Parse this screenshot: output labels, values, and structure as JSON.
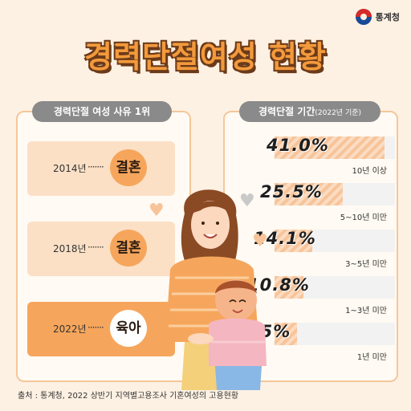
{
  "header": {
    "logo_text": "통계청",
    "title": "경력단절여성 현황"
  },
  "left_panel": {
    "tab_label": "경력단절 여성 사유 1위",
    "entries": [
      {
        "year": "2014년",
        "dots": "·······",
        "reason": "결혼"
      },
      {
        "year": "2018년",
        "dots": "·······",
        "reason": "결혼"
      },
      {
        "year": "2022년",
        "dots": "·······",
        "reason": "육아"
      }
    ]
  },
  "right_panel": {
    "tab_label": "경력단절 기간",
    "tab_note": "(2022년 기준)"
  },
  "chart_data": {
    "type": "bar",
    "categories": [
      "10년 이상",
      "5~10년 미만",
      "3~5년 미만",
      "1~3년 미만",
      "1년 미만"
    ],
    "values": [
      41.0,
      25.5,
      14.1,
      10.8,
      8.5
    ],
    "value_labels": [
      "41.0%",
      "25.5%",
      "14.1%",
      "10.8%",
      "8.5%"
    ],
    "xlim": [
      0,
      45
    ]
  },
  "footer": {
    "source": "출처 : 통계청, 2022 상반기 지역별고용조사 기혼여성의 고용현황"
  },
  "colors": {
    "background": "#fdf1e3",
    "title_fill": "#f39a3c",
    "title_outline": "#6b3a1a",
    "card": "#fbe0c6",
    "card_highlight": "#f6a65c",
    "tab": "#8a8a8a",
    "bar_fill": "#f7c49a"
  },
  "illustration": {
    "icon": "mother-and-child-illustration"
  }
}
